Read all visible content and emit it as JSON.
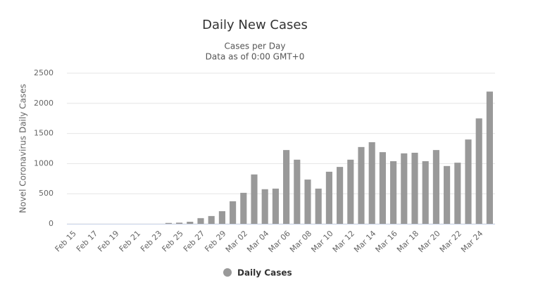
{
  "chart_data": {
    "type": "bar",
    "title": "Daily New Cases",
    "subtitle": [
      "Cases per Day",
      "Data as of 0:00 GMT+0"
    ],
    "y_label": "Novel Coronavirus Daily Cases",
    "categories": [
      "Feb 15",
      null,
      "Feb 17",
      null,
      "Feb 19",
      null,
      "Feb 21",
      null,
      "Feb 23",
      null,
      "Feb 25",
      null,
      "Feb 27",
      null,
      "Feb 29",
      null,
      "Mar 02",
      null,
      "Mar 04",
      null,
      "Mar 06",
      null,
      "Mar 08",
      null,
      "Mar 10",
      null,
      "Mar 12",
      null,
      "Mar 14",
      null,
      "Mar 16",
      null,
      "Mar 18",
      null,
      "Mar 20",
      null,
      "Mar 22",
      null,
      "Mar 24",
      null
    ],
    "series": [
      {
        "name": "Daily Cases",
        "color": "#999999",
        "values": [
          0,
          0,
          0,
          0,
          0,
          0,
          0,
          0,
          0,
          15,
          20,
          35,
          95,
          130,
          210,
          375,
          515,
          820,
          575,
          585,
          1225,
          1065,
          735,
          585,
          865,
          945,
          1065,
          1275,
          1355,
          1190,
          1040,
          1170,
          1180,
          1040,
          1225,
          960,
          1015,
          1400,
          1750,
          2195
        ]
      }
    ],
    "ylim": [
      0,
      2500
    ],
    "yticks": [
      0,
      500,
      1000,
      1500,
      2000,
      2500
    ],
    "grid": true,
    "legend": "bottom"
  }
}
